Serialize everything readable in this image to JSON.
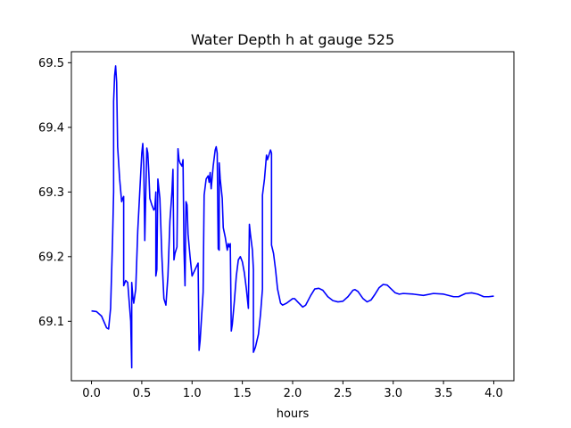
{
  "chart_data": {
    "type": "line",
    "title": "Water Depth h at gauge 525",
    "xlabel": "hours",
    "ylabel": "",
    "xlim": [
      -0.2,
      4.2
    ],
    "ylim": [
      69.008,
      69.517
    ],
    "grid": false,
    "line_color": "#0000ff",
    "x_ticks": [
      {
        "value": 0.0,
        "label": "0.0"
      },
      {
        "value": 0.5,
        "label": "0.5"
      },
      {
        "value": 1.0,
        "label": "1.0"
      },
      {
        "value": 1.5,
        "label": "1.5"
      },
      {
        "value": 2.0,
        "label": "2.0"
      },
      {
        "value": 2.5,
        "label": "2.5"
      },
      {
        "value": 3.0,
        "label": "3.0"
      },
      {
        "value": 3.5,
        "label": "3.5"
      },
      {
        "value": 4.0,
        "label": "4.0"
      }
    ],
    "y_ticks": [
      {
        "value": 69.1,
        "label": "69.1"
      },
      {
        "value": 69.2,
        "label": "69.2"
      },
      {
        "value": 69.3,
        "label": "69.3"
      },
      {
        "value": 69.4,
        "label": "69.4"
      },
      {
        "value": 69.5,
        "label": "69.5"
      }
    ],
    "series": [
      {
        "color": "#0000ff",
        "points": [
          [
            0.0,
            69.116
          ],
          [
            0.05,
            69.115
          ],
          [
            0.1,
            69.108
          ],
          [
            0.15,
            69.09
          ],
          [
            0.17,
            69.088
          ],
          [
            0.19,
            69.12
          ],
          [
            0.21,
            69.23
          ],
          [
            0.22,
            69.3
          ],
          [
            0.22,
            69.44
          ],
          [
            0.23,
            69.48
          ],
          [
            0.24,
            69.495
          ],
          [
            0.25,
            69.47
          ],
          [
            0.26,
            69.37
          ],
          [
            0.28,
            69.32
          ],
          [
            0.3,
            69.285
          ],
          [
            0.31,
            69.29
          ],
          [
            0.32,
            69.293
          ],
          [
            0.32,
            69.155
          ],
          [
            0.34,
            69.163
          ],
          [
            0.36,
            69.16
          ],
          [
            0.39,
            69.1
          ],
          [
            0.4,
            69.028
          ],
          [
            0.4,
            69.16
          ],
          [
            0.41,
            69.14
          ],
          [
            0.42,
            69.128
          ],
          [
            0.44,
            69.15
          ],
          [
            0.46,
            69.24
          ],
          [
            0.48,
            69.3
          ],
          [
            0.5,
            69.36
          ],
          [
            0.51,
            69.375
          ],
          [
            0.52,
            69.34
          ],
          [
            0.53,
            69.225
          ],
          [
            0.54,
            69.3
          ],
          [
            0.55,
            69.368
          ],
          [
            0.56,
            69.36
          ],
          [
            0.57,
            69.33
          ],
          [
            0.58,
            69.29
          ],
          [
            0.6,
            69.28
          ],
          [
            0.62,
            69.272
          ],
          [
            0.63,
            69.275
          ],
          [
            0.64,
            69.3
          ],
          [
            0.64,
            69.17
          ],
          [
            0.65,
            69.18
          ],
          [
            0.66,
            69.32
          ],
          [
            0.67,
            69.305
          ],
          [
            0.68,
            69.29
          ],
          [
            0.7,
            69.2
          ],
          [
            0.72,
            69.135
          ],
          [
            0.74,
            69.125
          ],
          [
            0.76,
            69.17
          ],
          [
            0.78,
            69.255
          ],
          [
            0.8,
            69.3
          ],
          [
            0.81,
            69.335
          ],
          [
            0.82,
            69.195
          ],
          [
            0.83,
            69.205
          ],
          [
            0.85,
            69.215
          ],
          [
            0.86,
            69.367
          ],
          [
            0.87,
            69.35
          ],
          [
            0.88,
            69.345
          ],
          [
            0.9,
            69.34
          ],
          [
            0.91,
            69.35
          ],
          [
            0.92,
            69.21
          ],
          [
            0.93,
            69.155
          ],
          [
            0.94,
            69.285
          ],
          [
            0.95,
            69.28
          ],
          [
            0.96,
            69.235
          ],
          [
            0.98,
            69.2
          ],
          [
            1.0,
            69.17
          ],
          [
            1.03,
            69.18
          ],
          [
            1.06,
            69.19
          ],
          [
            1.07,
            69.055
          ],
          [
            1.08,
            69.07
          ],
          [
            1.1,
            69.12
          ],
          [
            1.11,
            69.145
          ],
          [
            1.12,
            69.295
          ],
          [
            1.14,
            69.32
          ],
          [
            1.16,
            69.325
          ],
          [
            1.17,
            69.315
          ],
          [
            1.18,
            69.33
          ],
          [
            1.19,
            69.305
          ],
          [
            1.21,
            69.34
          ],
          [
            1.23,
            69.365
          ],
          [
            1.24,
            69.37
          ],
          [
            1.25,
            69.36
          ],
          [
            1.26,
            69.212
          ],
          [
            1.27,
            69.21
          ],
          [
            1.27,
            69.345
          ],
          [
            1.28,
            69.32
          ],
          [
            1.3,
            69.29
          ],
          [
            1.31,
            69.245
          ],
          [
            1.33,
            69.23
          ],
          [
            1.35,
            69.21
          ],
          [
            1.36,
            69.22
          ],
          [
            1.37,
            69.215
          ],
          [
            1.38,
            69.22
          ],
          [
            1.39,
            69.085
          ],
          [
            1.4,
            69.095
          ],
          [
            1.42,
            69.13
          ],
          [
            1.44,
            69.17
          ],
          [
            1.46,
            69.195
          ],
          [
            1.48,
            69.2
          ],
          [
            1.5,
            69.192
          ],
          [
            1.52,
            69.175
          ],
          [
            1.54,
            69.15
          ],
          [
            1.56,
            69.12
          ],
          [
            1.57,
            69.25
          ],
          [
            1.58,
            69.235
          ],
          [
            1.6,
            69.21
          ],
          [
            1.61,
            69.18
          ],
          [
            1.61,
            69.052
          ],
          [
            1.63,
            69.06
          ],
          [
            1.66,
            69.08
          ],
          [
            1.68,
            69.11
          ],
          [
            1.7,
            69.15
          ],
          [
            1.7,
            69.295
          ],
          [
            1.72,
            69.32
          ],
          [
            1.74,
            69.357
          ],
          [
            1.75,
            69.35
          ],
          [
            1.77,
            69.36
          ],
          [
            1.78,
            69.365
          ],
          [
            1.79,
            69.36
          ],
          [
            1.79,
            69.218
          ],
          [
            1.81,
            69.205
          ],
          [
            1.83,
            69.18
          ],
          [
            1.85,
            69.15
          ],
          [
            1.88,
            69.128
          ],
          [
            1.9,
            69.125
          ],
          [
            1.94,
            69.128
          ],
          [
            2.0,
            69.135
          ],
          [
            2.02,
            69.135
          ],
          [
            2.05,
            69.13
          ],
          [
            2.1,
            69.122
          ],
          [
            2.13,
            69.125
          ],
          [
            2.18,
            69.14
          ],
          [
            2.22,
            69.15
          ],
          [
            2.26,
            69.151
          ],
          [
            2.3,
            69.148
          ],
          [
            2.35,
            69.138
          ],
          [
            2.4,
            69.132
          ],
          [
            2.45,
            69.13
          ],
          [
            2.5,
            69.131
          ],
          [
            2.55,
            69.138
          ],
          [
            2.6,
            69.148
          ],
          [
            2.62,
            69.149
          ],
          [
            2.65,
            69.146
          ],
          [
            2.7,
            69.135
          ],
          [
            2.74,
            69.13
          ],
          [
            2.78,
            69.133
          ],
          [
            2.82,
            69.142
          ],
          [
            2.86,
            69.152
          ],
          [
            2.9,
            69.157
          ],
          [
            2.94,
            69.156
          ],
          [
            2.98,
            69.15
          ],
          [
            3.02,
            69.144
          ],
          [
            3.06,
            69.142
          ],
          [
            3.1,
            69.143
          ],
          [
            3.2,
            69.142
          ],
          [
            3.3,
            69.14
          ],
          [
            3.4,
            69.143
          ],
          [
            3.5,
            69.142
          ],
          [
            3.6,
            69.138
          ],
          [
            3.65,
            69.138
          ],
          [
            3.72,
            69.143
          ],
          [
            3.78,
            69.144
          ],
          [
            3.84,
            69.142
          ],
          [
            3.9,
            69.138
          ],
          [
            3.95,
            69.138
          ],
          [
            4.0,
            69.139
          ]
        ]
      }
    ]
  }
}
